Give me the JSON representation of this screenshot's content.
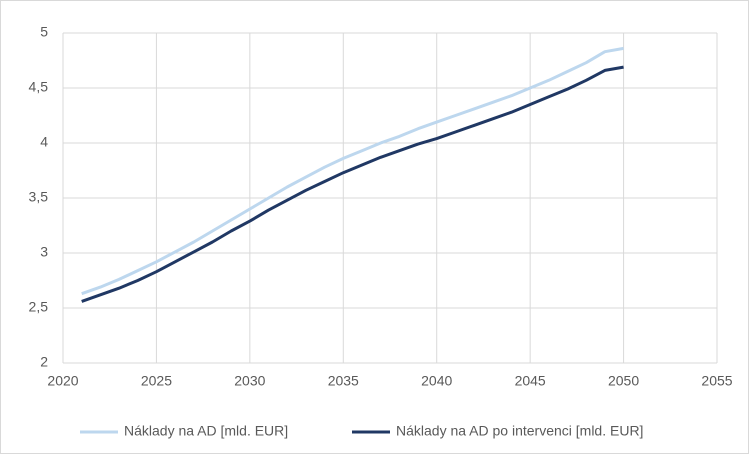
{
  "chart_data": {
    "type": "line",
    "x": [
      2021,
      2022,
      2023,
      2024,
      2025,
      2026,
      2027,
      2028,
      2029,
      2030,
      2031,
      2032,
      2033,
      2034,
      2035,
      2036,
      2037,
      2038,
      2039,
      2040,
      2041,
      2042,
      2043,
      2044,
      2045,
      2046,
      2047,
      2048,
      2049,
      2050
    ],
    "series": [
      {
        "name": "Náklady na AD [mld. EUR]",
        "color": "#bdd7ee",
        "values": [
          2.63,
          2.69,
          2.76,
          2.84,
          2.92,
          3.01,
          3.1,
          3.2,
          3.3,
          3.4,
          3.5,
          3.6,
          3.69,
          3.78,
          3.86,
          3.93,
          4.0,
          4.06,
          4.13,
          4.19,
          4.25,
          4.31,
          4.37,
          4.43,
          4.5,
          4.57,
          4.65,
          4.73,
          4.83,
          4.86
        ]
      },
      {
        "name": "Náklady na AD po intervenci [mld. EUR]",
        "color": "#203864",
        "values": [
          2.56,
          2.62,
          2.68,
          2.75,
          2.83,
          2.92,
          3.01,
          3.1,
          3.2,
          3.29,
          3.39,
          3.48,
          3.57,
          3.65,
          3.73,
          3.8,
          3.87,
          3.93,
          3.99,
          4.04,
          4.1,
          4.16,
          4.22,
          4.28,
          4.35,
          4.42,
          4.49,
          4.57,
          4.66,
          4.69
        ]
      }
    ],
    "xlim": [
      2020,
      2055
    ],
    "xticks": [
      2020,
      2025,
      2030,
      2035,
      2040,
      2045,
      2050,
      2055
    ],
    "ylim": [
      2,
      5
    ],
    "yticks": [
      2,
      {
        "value": 2.5,
        "label": "2,5"
      },
      3,
      {
        "value": 3.5,
        "label": "3,5"
      },
      4,
      {
        "value": 4.5,
        "label": "4,5"
      },
      5
    ],
    "grid": true,
    "legend": "bottom"
  }
}
